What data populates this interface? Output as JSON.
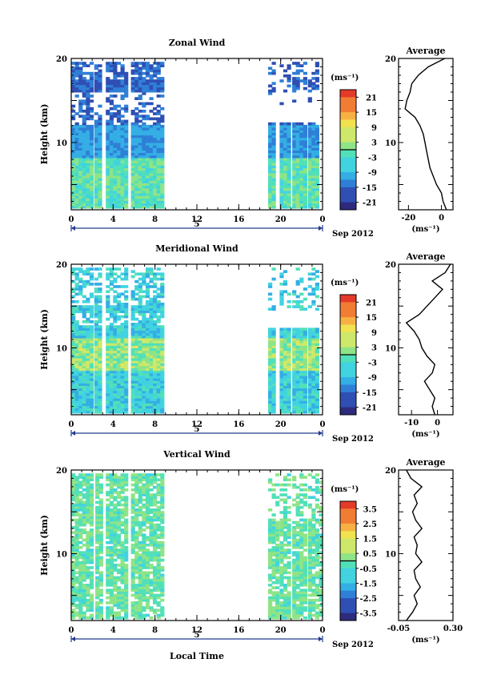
{
  "chart_data": [
    {
      "type": "heatmap",
      "title": "Zonal Wind",
      "ylabel": "Height (km)",
      "ylim": [
        2,
        20
      ],
      "x_ticks": [
        "0",
        "4",
        "8",
        "12",
        "16",
        "20",
        "0"
      ],
      "xlim_hours": [
        0,
        24
      ],
      "date_label": "5",
      "month_label": "Sep 2012",
      "y_ticks": [
        "20",
        "10"
      ],
      "colorbar": {
        "unit": "(ms⁻¹)",
        "ticks": [
          "21",
          "15",
          "9",
          "3",
          "-3",
          "-9",
          "-15",
          "-21"
        ],
        "range": [
          -24,
          24
        ]
      },
      "data_windows_hours": [
        [
          0,
          2.0
        ],
        [
          2.2,
          2.8
        ],
        [
          3.3,
          5.2
        ],
        [
          5.7,
          8.8
        ],
        [
          18.8,
          19.5
        ],
        [
          19.9,
          20.7
        ],
        [
          21.1,
          22.2
        ],
        [
          22.6,
          23.5
        ]
      ],
      "profile": {
        "title": "Average",
        "xlabel": "(ms⁻¹)",
        "x_ticks": [
          "-20",
          "0"
        ],
        "xlim": [
          -26,
          7
        ],
        "y_ticks": [
          "20",
          "10"
        ],
        "heights": [
          2,
          3,
          4,
          5,
          6,
          7,
          8,
          9,
          10,
          11,
          12,
          13,
          14,
          15,
          16,
          17,
          18,
          19,
          19.5,
          20
        ],
        "values": [
          3,
          1,
          0,
          -3,
          -5,
          -7,
          -8,
          -9,
          -10,
          -11,
          -13,
          -16,
          -22,
          -21,
          -19,
          -18,
          -14,
          -8,
          -3,
          2
        ]
      }
    },
    {
      "type": "heatmap",
      "title": "Meridional Wind",
      "ylabel": "Height (km)",
      "ylim": [
        2,
        20
      ],
      "x_ticks": [
        "0",
        "4",
        "8",
        "12",
        "16",
        "20",
        "0"
      ],
      "xlim_hours": [
        0,
        24
      ],
      "date_label": "5",
      "month_label": "Sep 2012",
      "y_ticks": [
        "20",
        "10"
      ],
      "colorbar": {
        "unit": "(ms⁻¹)",
        "ticks": [
          "21",
          "15",
          "9",
          "3",
          "-3",
          "-9",
          "-15",
          "-21"
        ],
        "range": [
          -24,
          24
        ]
      },
      "data_windows_hours": [
        [
          0,
          2.0
        ],
        [
          2.2,
          2.8
        ],
        [
          3.3,
          5.2
        ],
        [
          5.7,
          8.8
        ],
        [
          18.8,
          19.5
        ],
        [
          19.9,
          20.7
        ],
        [
          21.1,
          22.2
        ],
        [
          22.6,
          23.5
        ]
      ],
      "profile": {
        "title": "Average",
        "xlabel": "(ms⁻¹)",
        "x_ticks": [
          "-10",
          "0"
        ],
        "xlim": [
          -15,
          6
        ],
        "y_ticks": [
          "20",
          "10"
        ],
        "heights": [
          2,
          3,
          4,
          5,
          6,
          7,
          8,
          9,
          10,
          11,
          12,
          13,
          14,
          15,
          16,
          17,
          18,
          19,
          20
        ],
        "values": [
          -1,
          -2,
          -1,
          -3,
          -5,
          -2,
          -1,
          -4,
          -6,
          -7,
          -9,
          -12,
          -7,
          -4,
          -1,
          2,
          -2,
          3,
          5
        ]
      }
    },
    {
      "type": "heatmap",
      "title": "Vertical Wind",
      "ylabel": "Height (km)",
      "xlabel": "Local Time",
      "ylim": [
        2,
        20
      ],
      "x_ticks": [
        "0",
        "4",
        "8",
        "12",
        "16",
        "20",
        "0"
      ],
      "xlim_hours": [
        0,
        24
      ],
      "date_label": "5",
      "month_label": "Sep 2012",
      "y_ticks": [
        "20",
        "10"
      ],
      "colorbar": {
        "unit": "(ms⁻¹)",
        "ticks": [
          "3.5",
          "2.5",
          "1.5",
          "0.5",
          "-0.5",
          "-1.5",
          "-2.5",
          "-3.5"
        ],
        "range": [
          -4,
          4
        ]
      },
      "data_windows_hours": [
        [
          0,
          2.0
        ],
        [
          2.3,
          3.0
        ],
        [
          3.3,
          5.2
        ],
        [
          5.7,
          8.8
        ],
        [
          18.8,
          19.6
        ],
        [
          19.9,
          20.9
        ],
        [
          21.1,
          22.3
        ],
        [
          22.6,
          23.7
        ]
      ],
      "profile": {
        "title": "Average",
        "xlabel": "(ms⁻¹)",
        "x_ticks": [
          "-0.05",
          "0.30"
        ],
        "xlim": [
          -0.05,
          0.3
        ],
        "y_ticks": [
          "20",
          "10"
        ],
        "heights": [
          2,
          3,
          4,
          5,
          6,
          7,
          8,
          9,
          10,
          11,
          12,
          13,
          14,
          15,
          16,
          17,
          18,
          19,
          20
        ],
        "values": [
          0.0,
          0.04,
          0.07,
          0.05,
          0.09,
          0.06,
          0.05,
          0.1,
          0.06,
          0.07,
          0.05,
          0.1,
          0.06,
          0.04,
          0.07,
          0.05,
          0.1,
          0.03,
          0.0
        ]
      }
    }
  ]
}
